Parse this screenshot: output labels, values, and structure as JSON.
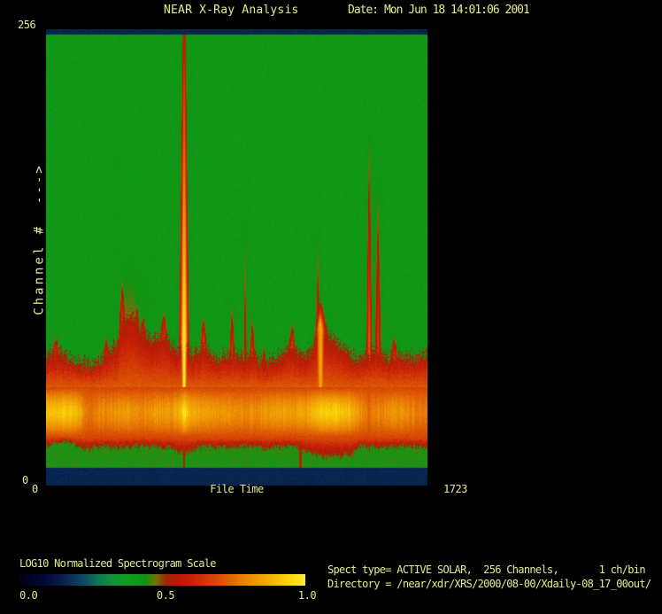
{
  "header": {
    "title": "NEAR X-Ray Analysis",
    "date": "Date: Mon Jun 18 14:01:06 2001"
  },
  "plot": {
    "y_axis": {
      "label": "Channel #  --->",
      "top_tick": "256",
      "bottom_tick": "0"
    },
    "x_axis": {
      "left_tick": "0",
      "label": "File Time",
      "right_tick": "1723"
    }
  },
  "scale_bar": {
    "title": "LOG10 Normalized Spectrogram Scale",
    "ticks": [
      "0.0",
      "0.5",
      "1.0"
    ]
  },
  "info": {
    "line1": "Spect type= ACTIVE SOLAR,  256 Channels,       1 ch/bin",
    "line2": "Directory = /near/xdr/XRS/2000/08-00/Xdaily-08_17_00out/"
  },
  "colors": {
    "background": "#000000",
    "text": "#e9e98f",
    "edge_band_navy": "#0d2a52",
    "quiet_green": "#169220"
  },
  "chart_data": {
    "type": "heatmap",
    "title": "NEAR X-Ray Analysis",
    "xlabel": "File Time",
    "xlim": [
      0,
      1723
    ],
    "ylabel": "Channel #",
    "ylim": [
      0,
      256
    ],
    "value_scale": {
      "label": "LOG10 Normalized Spectrogram Scale",
      "range": [
        0.0,
        1.0
      ],
      "ticks": [
        0.0,
        0.5,
        1.0
      ]
    },
    "colormap_stops": [
      [
        0.0,
        "#010112"
      ],
      [
        0.08,
        "#04043a"
      ],
      [
        0.15,
        "#07204e"
      ],
      [
        0.22,
        "#0c4660"
      ],
      [
        0.28,
        "#107c52"
      ],
      [
        0.33,
        "#149434"
      ],
      [
        0.38,
        "#119c1c"
      ],
      [
        0.44,
        "#0f9413"
      ],
      [
        0.48,
        "#7c6e09"
      ],
      [
        0.51,
        "#9c2807"
      ],
      [
        0.55,
        "#b51b06"
      ],
      [
        0.6,
        "#c62106"
      ],
      [
        0.66,
        "#d23c06"
      ],
      [
        0.72,
        "#dd5a05"
      ],
      [
        0.8,
        "#ec8a05"
      ],
      [
        0.88,
        "#f5b306"
      ],
      [
        0.95,
        "#fbd80e"
      ],
      [
        1.0,
        "#ffeb3c"
      ]
    ],
    "structure": {
      "edge_bands": [
        {
          "channels": [
            253,
            256
          ],
          "value": 0.16
        },
        {
          "channels": [
            0,
            10
          ],
          "value": 0.16
        }
      ],
      "quiet_background_value": 0.41,
      "low_green_band": {
        "channels": [
          10,
          24
        ],
        "value": 0.43
      },
      "emission_band": {
        "core_channels": [
          27,
          55
        ],
        "core_peak_channel": 41,
        "red_top_channel_profile": [
          [
            0,
            74
          ],
          [
            60,
            76
          ],
          [
            120,
            71
          ],
          [
            200,
            68
          ],
          [
            260,
            72
          ],
          [
            320,
            80
          ],
          [
            344,
            92
          ],
          [
            384,
            96
          ],
          [
            430,
            88
          ],
          [
            470,
            82
          ],
          [
            532,
            86
          ],
          [
            580,
            76
          ],
          [
            624,
            80
          ],
          [
            660,
            74
          ],
          [
            712,
            78
          ],
          [
            770,
            71
          ],
          [
            840,
            75
          ],
          [
            900,
            71
          ],
          [
            932,
            75
          ],
          [
            984,
            69
          ],
          [
            1040,
            73
          ],
          [
            1112,
            79
          ],
          [
            1160,
            72
          ],
          [
            1200,
            76
          ],
          [
            1240,
            90
          ],
          [
            1290,
            82
          ],
          [
            1352,
            76
          ],
          [
            1400,
            71
          ],
          [
            1460,
            75
          ],
          [
            1500,
            77
          ],
          [
            1550,
            71
          ],
          [
            1600,
            74
          ],
          [
            1660,
            72
          ],
          [
            1723,
            74
          ]
        ],
        "red_bottom_channel_profile": [
          [
            0,
            22
          ],
          [
            100,
            25
          ],
          [
            172,
            20
          ],
          [
            250,
            22
          ],
          [
            350,
            21
          ],
          [
            450,
            22
          ],
          [
            550,
            21
          ],
          [
            600,
            19
          ],
          [
            624,
            17
          ],
          [
            650,
            19
          ],
          [
            700,
            22
          ],
          [
            800,
            21
          ],
          [
            900,
            22
          ],
          [
            1000,
            21
          ],
          [
            1100,
            22
          ],
          [
            1160,
            20
          ],
          [
            1200,
            17
          ],
          [
            1300,
            16
          ],
          [
            1380,
            17
          ],
          [
            1420,
            22
          ],
          [
            1500,
            21
          ],
          [
            1600,
            22
          ],
          [
            1723,
            21
          ]
        ],
        "core_brightness_profile": [
          [
            0,
            0.9
          ],
          [
            80,
            0.93
          ],
          [
            140,
            0.9
          ],
          [
            172,
            0.8
          ],
          [
            205,
            0.76
          ],
          [
            235,
            0.8
          ],
          [
            300,
            0.81
          ],
          [
            360,
            0.83
          ],
          [
            430,
            0.8
          ],
          [
            500,
            0.84
          ],
          [
            570,
            0.83
          ],
          [
            610,
            0.9
          ],
          [
            624,
            0.98
          ],
          [
            645,
            0.89
          ],
          [
            700,
            0.85
          ],
          [
            780,
            0.83
          ],
          [
            860,
            0.81
          ],
          [
            940,
            0.81
          ],
          [
            1010,
            0.83
          ],
          [
            1070,
            0.85
          ],
          [
            1120,
            0.83
          ],
          [
            1160,
            0.85
          ],
          [
            1200,
            0.88
          ],
          [
            1250,
            0.93
          ],
          [
            1310,
            0.93
          ],
          [
            1370,
            0.9
          ],
          [
            1420,
            0.82
          ],
          [
            1460,
            0.75
          ],
          [
            1490,
            0.79
          ],
          [
            1530,
            0.81
          ],
          [
            1570,
            0.83
          ],
          [
            1620,
            0.8
          ],
          [
            1680,
            0.78
          ],
          [
            1723,
            0.77
          ]
        ]
      },
      "flares": [
        {
          "t": 44,
          "top": 86,
          "w": 8,
          "peak": 0.66
        },
        {
          "t": 272,
          "top": 88,
          "w": 7,
          "peak": 0.63
        },
        {
          "t": 344,
          "top": 122,
          "w": 9,
          "peak": 0.66
        },
        {
          "t": 352,
          "top": 150,
          "w": 18,
          "peak": 0.5
        },
        {
          "t": 384,
          "top": 195,
          "w": 34,
          "peak": 0.48
        },
        {
          "t": 412,
          "top": 107,
          "w": 7,
          "peak": 0.62
        },
        {
          "t": 440,
          "top": 99,
          "w": 7,
          "peak": 0.62
        },
        {
          "t": 532,
          "top": 100,
          "w": 9,
          "peak": 0.68
        },
        {
          "t": 624,
          "top": 253,
          "w": 11,
          "peak": 1.0
        },
        {
          "t": 712,
          "top": 97,
          "w": 9,
          "peak": 0.7
        },
        {
          "t": 840,
          "top": 108,
          "w": 7,
          "peak": 0.66
        },
        {
          "t": 900,
          "top": 200,
          "w": 5,
          "peak": 0.56
        },
        {
          "t": 932,
          "top": 99,
          "w": 7,
          "peak": 0.66
        },
        {
          "t": 984,
          "top": 84,
          "w": 5,
          "peak": 0.62
        },
        {
          "t": 1112,
          "top": 93,
          "w": 9,
          "peak": 0.69
        },
        {
          "t": 1150,
          "top": 80,
          "w": 5,
          "peak": 0.57
        },
        {
          "t": 1228,
          "top": 170,
          "w": 6,
          "peak": 0.58
        },
        {
          "t": 1240,
          "top": 102,
          "w": 16,
          "peak": 0.85
        },
        {
          "t": 1352,
          "top": 78,
          "w": 10,
          "peak": 0.7
        },
        {
          "t": 1460,
          "top": 198,
          "w": 7,
          "peak": 0.73
        },
        {
          "t": 1500,
          "top": 185,
          "w": 8,
          "peak": 0.66
        },
        {
          "t": 1572,
          "top": 86,
          "w": 9,
          "peak": 0.69
        }
      ],
      "descender_lines_t": [
        624,
        1150
      ]
    }
  }
}
